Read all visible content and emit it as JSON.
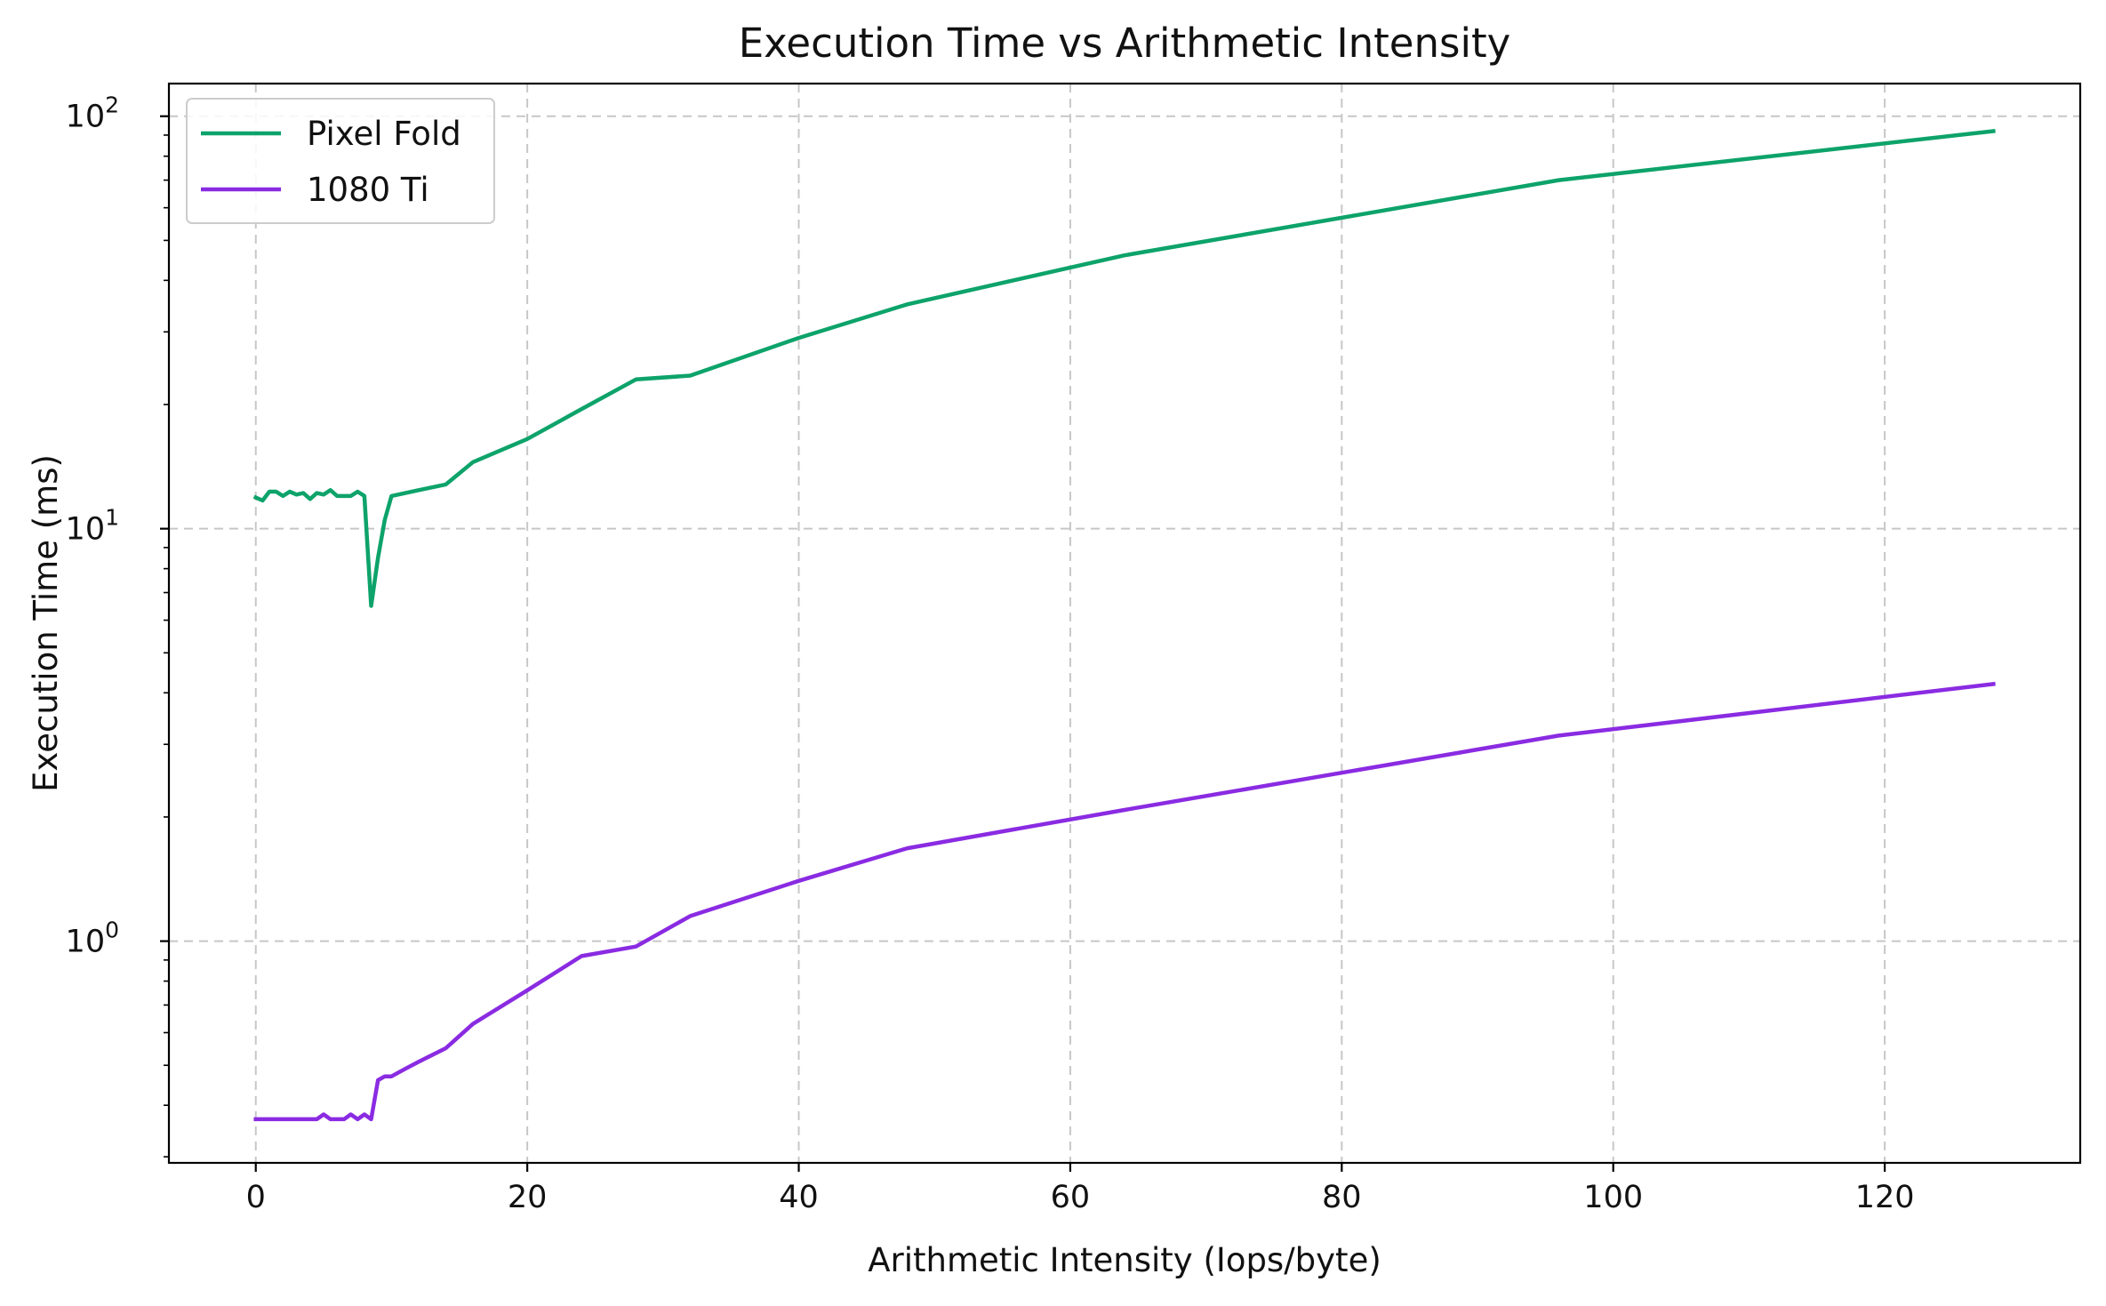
{
  "chart_data": {
    "type": "line",
    "title": "Execution Time vs Arithmetic Intensity",
    "xlabel": "Arithmetic Intensity (Iops/byte)",
    "ylabel": "Execution Time (ms)",
    "xlim": [
      -6.4,
      134.4
    ],
    "ylim": [
      0.29,
      120
    ],
    "yscale": "log",
    "grid": true,
    "legend_position": "top-left",
    "x_ticks": [
      "0",
      "20",
      "40",
      "60",
      "80",
      "100",
      "120"
    ],
    "y_ticks": [
      {
        "base": "10",
        "exp": "0"
      },
      {
        "base": "10",
        "exp": "1"
      },
      {
        "base": "10",
        "exp": "2"
      }
    ],
    "series": [
      {
        "name": "Pixel Fold",
        "color": "#0da36a",
        "x": [
          0,
          0.5,
          1,
          1.5,
          2,
          2.5,
          3,
          3.5,
          4,
          4.5,
          5,
          5.5,
          6,
          6.5,
          7,
          7.5,
          8,
          8.5,
          9,
          9.5,
          10,
          12,
          14,
          16,
          20,
          24,
          28,
          32,
          40,
          48,
          64,
          96,
          128
        ],
        "y": [
          11.9,
          11.7,
          12.3,
          12.3,
          12.0,
          12.3,
          12.1,
          12.2,
          11.8,
          12.2,
          12.1,
          12.4,
          12.0,
          12.0,
          12.0,
          12.3,
          12.0,
          6.5,
          8.5,
          10.5,
          12.0,
          12.4,
          12.8,
          14.5,
          16.5,
          19.5,
          23.0,
          23.5,
          29.0,
          35.0,
          46.0,
          70.0,
          92.0
        ]
      },
      {
        "name": "1080 Ti",
        "color": "#8a2be2",
        "x": [
          0,
          0.5,
          1,
          1.5,
          2,
          2.5,
          3,
          3.5,
          4,
          4.5,
          5,
          5.5,
          6,
          6.5,
          7,
          7.5,
          8,
          8.5,
          9,
          9.5,
          10,
          11,
          12,
          14,
          16,
          20,
          24,
          28,
          32,
          40,
          48,
          64,
          96,
          128
        ],
        "y": [
          0.37,
          0.37,
          0.37,
          0.37,
          0.37,
          0.37,
          0.37,
          0.37,
          0.37,
          0.37,
          0.38,
          0.37,
          0.37,
          0.37,
          0.38,
          0.37,
          0.38,
          0.37,
          0.46,
          0.47,
          0.47,
          0.49,
          0.51,
          0.55,
          0.63,
          0.76,
          0.92,
          0.97,
          1.15,
          1.4,
          1.68,
          2.08,
          3.15,
          4.2
        ]
      }
    ]
  }
}
